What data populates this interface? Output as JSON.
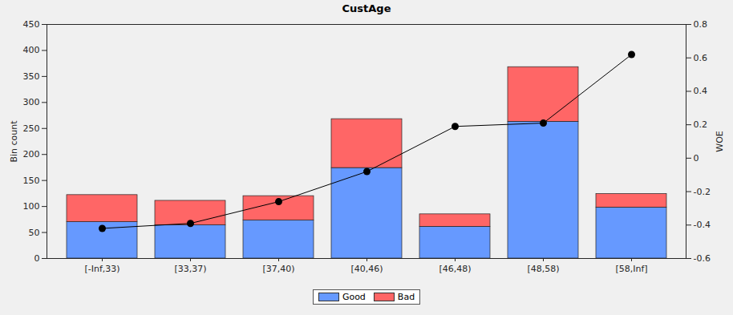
{
  "chart_data": {
    "type": "bar",
    "title": "CustAge",
    "stacked": true,
    "categories": [
      "[-Inf,33)",
      "[33,37)",
      "[37,40)",
      "[40,46)",
      "[46,48)",
      "[48,58)",
      "[58,Inf]"
    ],
    "series": [
      {
        "name": "Good",
        "type": "bar",
        "color": "#6699ff",
        "values": [
          70,
          64,
          73,
          174,
          61,
          263,
          98
        ]
      },
      {
        "name": "Bad",
        "type": "bar",
        "color": "#ff6666",
        "values": [
          52,
          47,
          47,
          94,
          24,
          105,
          26
        ]
      },
      {
        "type": "line",
        "axis": "y2",
        "color": "#000000",
        "marker": "circle",
        "line_style": "solid",
        "values": [
          -0.42,
          -0.39,
          -0.26,
          -0.08,
          0.19,
          0.21,
          0.62
        ]
      }
    ],
    "ylabel": "Bin count",
    "ylim": [
      0,
      450
    ],
    "yticks": [
      0,
      50,
      100,
      150,
      200,
      250,
      300,
      350,
      400,
      450
    ],
    "y2label": "WOE",
    "y2lim": [
      -0.6,
      0.8
    ],
    "y2ticks": [
      -0.6,
      -0.4,
      -0.2,
      0,
      0.2,
      0.4,
      0.6,
      0.8
    ],
    "grid": false,
    "legend": "bottom"
  }
}
